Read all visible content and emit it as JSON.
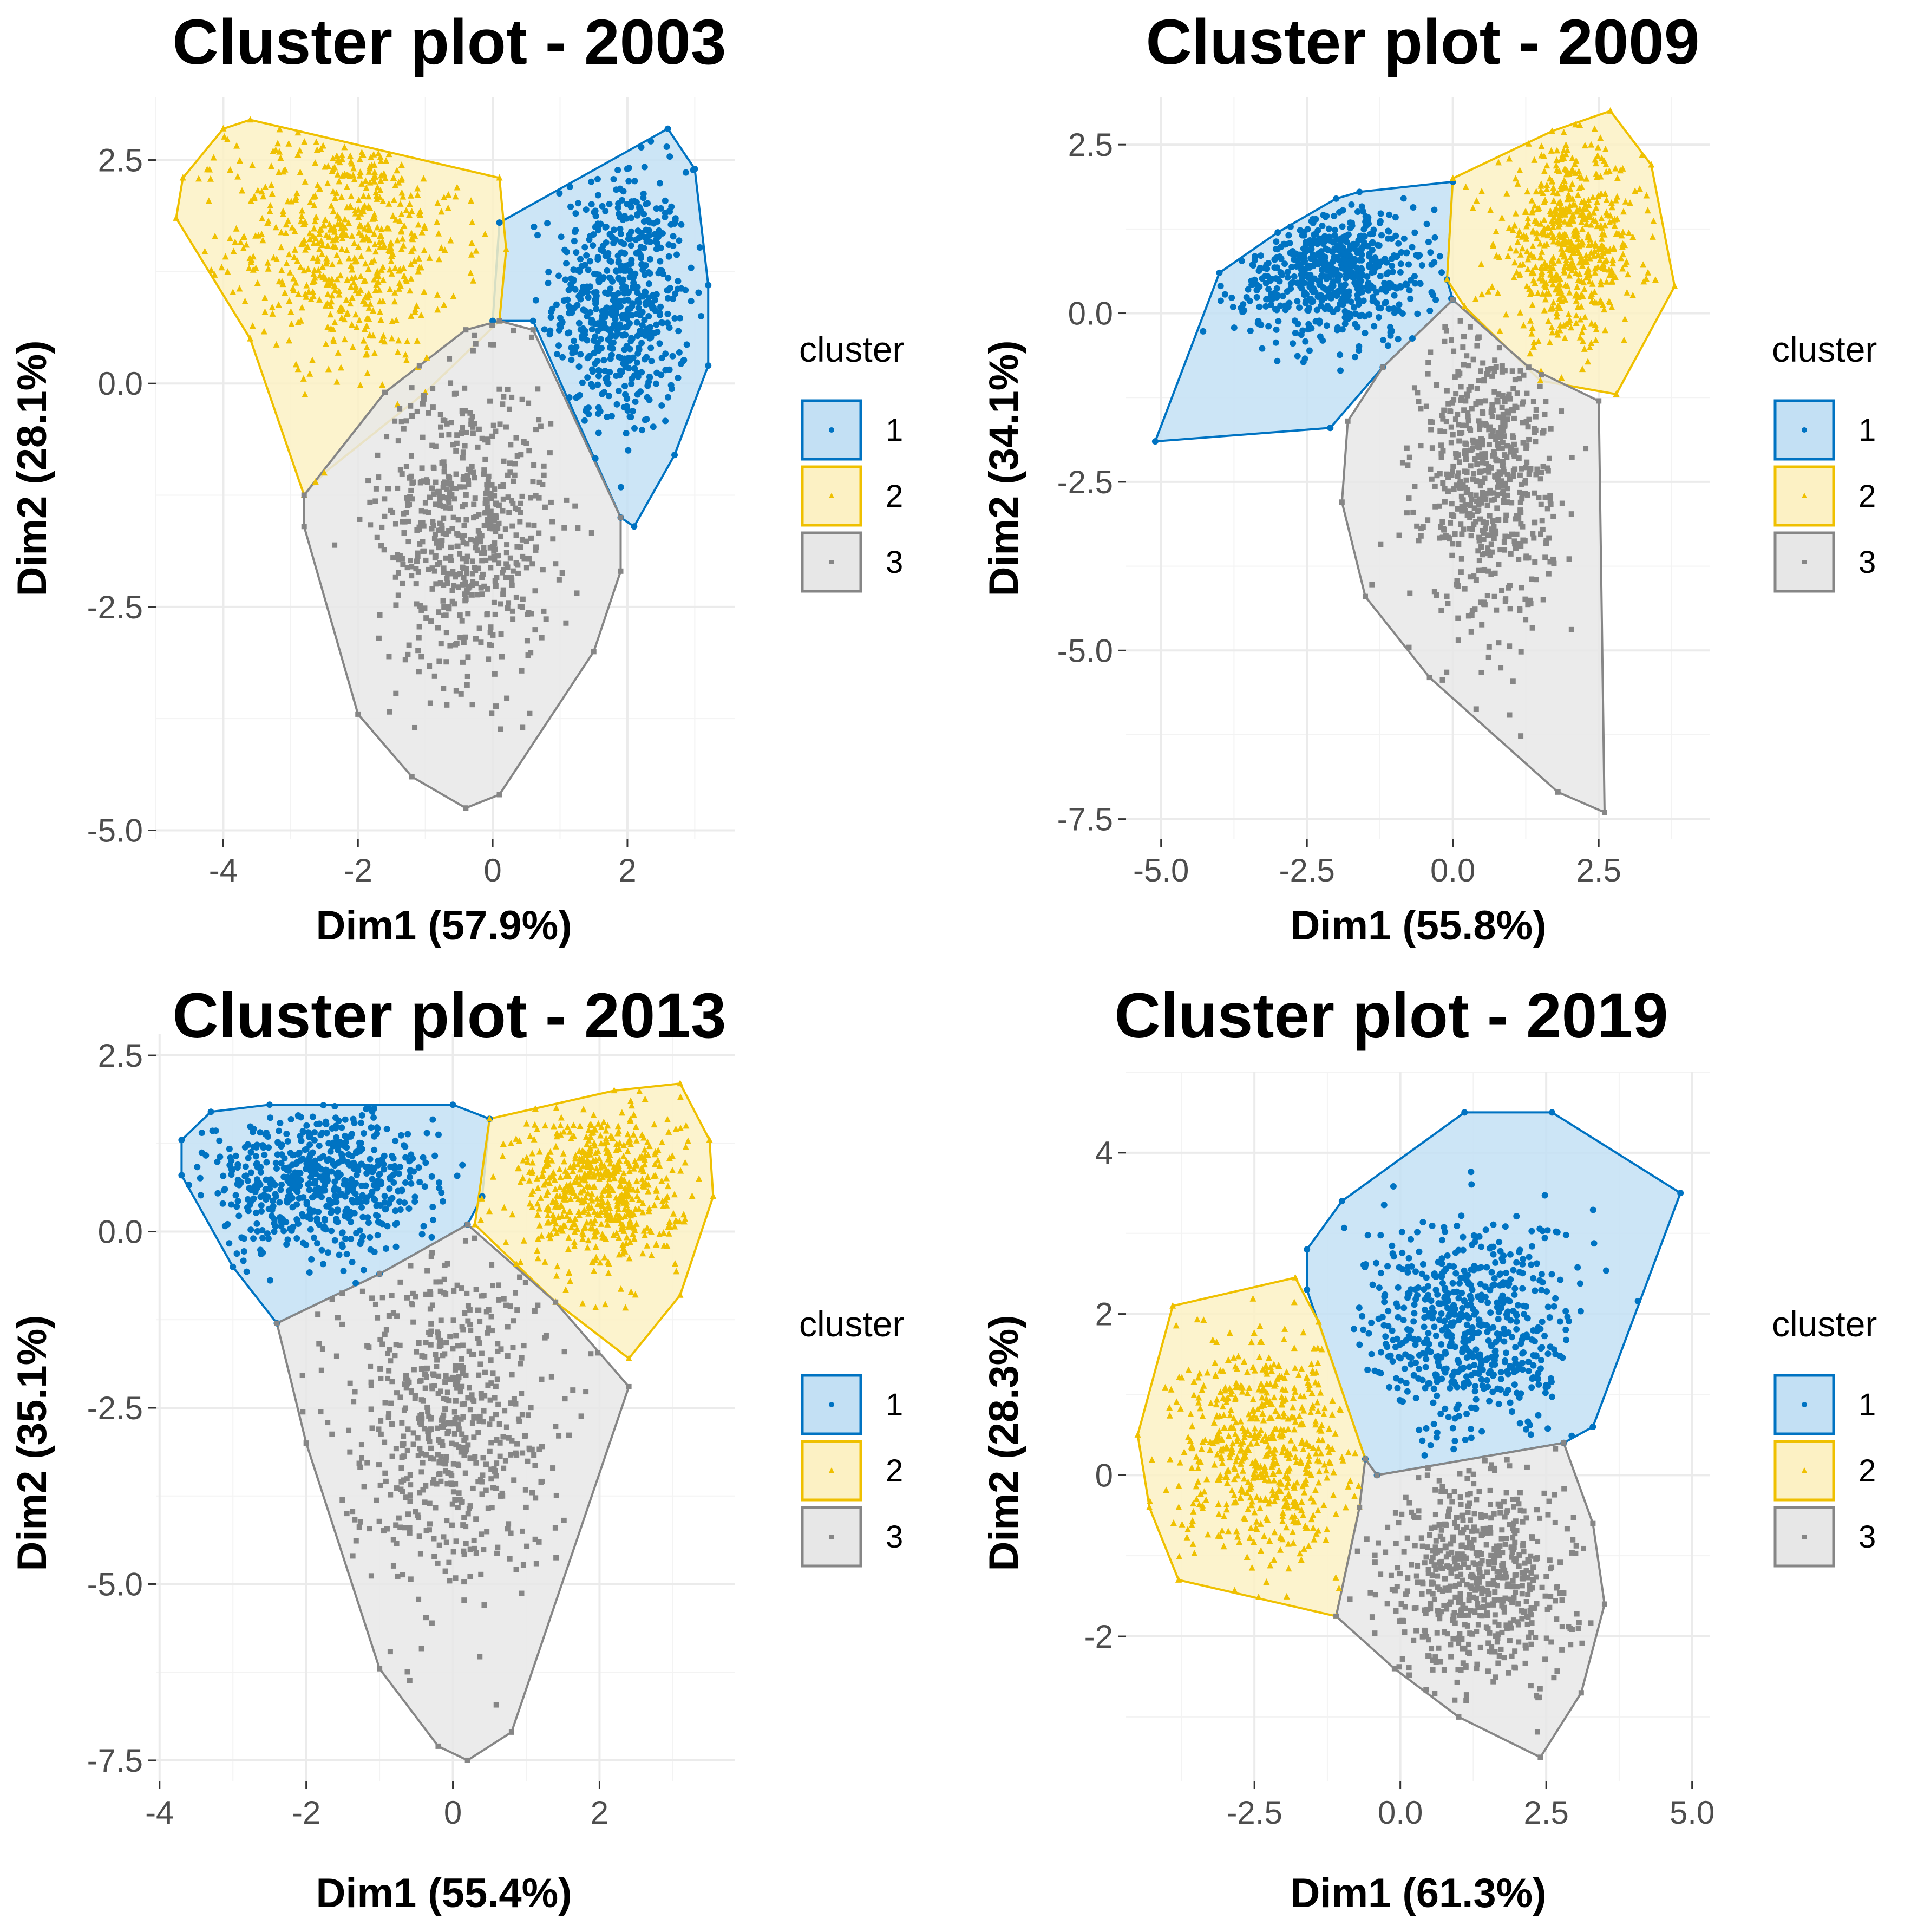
{
  "chart_data": [
    {
      "type": "scatter",
      "title": "Cluster plot - 2003",
      "xlabel": "Dim1 (57.9%)",
      "ylabel": "Dim2 (28.1%)",
      "xlim": [
        -5.0,
        3.6
      ],
      "ylim": [
        -5.1,
        3.2
      ],
      "xticks": [
        -4,
        -2,
        0,
        2
      ],
      "yticks": [
        -5.0,
        -2.5,
        0.0,
        2.5
      ],
      "xtick_labels": [
        "-4",
        "-2",
        "0",
        "2"
      ],
      "ytick_labels": [
        "-5.0",
        "-2.5",
        "0.0",
        "2.5"
      ],
      "legend_title": "cluster",
      "legend_position": "right",
      "series": [
        {
          "name": "1",
          "color": "#0073C2",
          "fill": "#C3E0F4",
          "marker": "circle",
          "hull": [
            [
              0.1,
              1.8
            ],
            [
              2.6,
              2.85
            ],
            [
              3.0,
              2.4
            ],
            [
              3.2,
              1.1
            ],
            [
              3.2,
              0.2
            ],
            [
              2.7,
              -0.8
            ],
            [
              2.1,
              -1.6
            ],
            [
              1.9,
              -1.5
            ],
            [
              0.6,
              0.7
            ],
            [
              0.0,
              0.7
            ]
          ],
          "center": [
            1.9,
            0.9
          ],
          "spread": [
            0.5,
            0.75
          ],
          "n": 600
        },
        {
          "name": "2",
          "color": "#EFC000",
          "fill": "#FCF1C4",
          "marker": "triangle",
          "hull": [
            [
              -4.7,
              1.85
            ],
            [
              -4.6,
              2.3
            ],
            [
              -4.0,
              2.85
            ],
            [
              -3.6,
              2.95
            ],
            [
              0.1,
              2.3
            ],
            [
              0.2,
              1.5
            ],
            [
              0.1,
              0.7
            ],
            [
              -1.0,
              -0.1
            ],
            [
              -2.5,
              -1.0
            ],
            [
              -2.8,
              -1.25
            ],
            [
              -3.6,
              0.5
            ]
          ],
          "center": [
            -2.2,
            1.6
          ],
          "spread": [
            0.85,
            0.7
          ],
          "n": 600
        },
        {
          "name": "3",
          "color": "#868686",
          "fill": "#E7E7E7",
          "marker": "square",
          "hull": [
            [
              -2.8,
              -1.25
            ],
            [
              -1.6,
              -0.1
            ],
            [
              -0.4,
              0.6
            ],
            [
              0.1,
              0.7
            ],
            [
              0.6,
              0.6
            ],
            [
              1.9,
              -1.5
            ],
            [
              1.9,
              -2.1
            ],
            [
              1.5,
              -3.0
            ],
            [
              0.1,
              -4.6
            ],
            [
              -0.4,
              -4.75
            ],
            [
              -1.2,
              -4.4
            ],
            [
              -2.0,
              -3.7
            ],
            [
              -2.8,
              -1.6
            ]
          ],
          "center": [
            -0.4,
            -1.6
          ],
          "spread": [
            0.65,
            0.85
          ],
          "n": 600
        }
      ]
    },
    {
      "type": "scatter",
      "title": "Cluster plot - 2009",
      "xlabel": "Dim1 (55.8%)",
      "ylabel": "Dim2 (34.1%)",
      "xlim": [
        -5.6,
        4.4
      ],
      "ylim": [
        -7.8,
        3.2
      ],
      "xticks": [
        -5.0,
        -2.5,
        0.0,
        2.5
      ],
      "yticks": [
        -7.5,
        -5.0,
        -2.5,
        0.0,
        2.5
      ],
      "xtick_labels": [
        "-5.0",
        "-2.5",
        "0.0",
        "2.5"
      ],
      "ytick_labels": [
        "-7.5",
        "-5.0",
        "-2.5",
        "0.0",
        "2.5"
      ],
      "legend_title": "cluster",
      "legend_position": "right",
      "series": [
        {
          "name": "1",
          "color": "#0073C2",
          "fill": "#C3E0F4",
          "marker": "circle",
          "hull": [
            [
              -5.1,
              -1.9
            ],
            [
              -4.0,
              0.6
            ],
            [
              -3.0,
              1.2
            ],
            [
              -2.0,
              1.7
            ],
            [
              -1.6,
              1.8
            ],
            [
              0.0,
              1.95
            ],
            [
              -0.1,
              0.5
            ],
            [
              0.0,
              0.2
            ],
            [
              -1.2,
              -0.8
            ],
            [
              -2.1,
              -1.7
            ]
          ],
          "center": [
            -2.0,
            0.6
          ],
          "spread": [
            0.85,
            0.5
          ],
          "n": 600
        },
        {
          "name": "2",
          "color": "#EFC000",
          "fill": "#FCF1C4",
          "marker": "triangle",
          "hull": [
            [
              0.0,
              2.0
            ],
            [
              1.7,
              2.7
            ],
            [
              2.7,
              3.0
            ],
            [
              3.4,
              2.2
            ],
            [
              3.8,
              0.4
            ],
            [
              2.8,
              -1.2
            ],
            [
              1.5,
              -1.0
            ],
            [
              0.2,
              0.1
            ],
            [
              -0.1,
              0.5
            ]
          ],
          "center": [
            2.0,
            1.0
          ],
          "spread": [
            0.6,
            0.7
          ],
          "n": 600
        },
        {
          "name": "3",
          "color": "#868686",
          "fill": "#E7E7E7",
          "marker": "square",
          "hull": [
            [
              0.0,
              0.2
            ],
            [
              1.3,
              -0.8
            ],
            [
              2.5,
              -1.3
            ],
            [
              2.6,
              -7.4
            ],
            [
              1.8,
              -7.1
            ],
            [
              -0.4,
              -5.4
            ],
            [
              -1.5,
              -4.2
            ],
            [
              -1.9,
              -2.8
            ],
            [
              -1.8,
              -1.6
            ],
            [
              -1.2,
              -0.8
            ]
          ],
          "center": [
            0.6,
            -2.4
          ],
          "spread": [
            0.55,
            1.1
          ],
          "n": 600
        }
      ]
    },
    {
      "type": "scatter",
      "title": "Cluster plot - 2013",
      "xlabel": "Dim1 (55.4%)",
      "ylabel": "Dim2 (35.1%)",
      "xlim": [
        -4.05,
        3.85
      ],
      "ylim": [
        -7.8,
        2.8
      ],
      "xticks": [
        -4,
        -2,
        0,
        2
      ],
      "yticks": [
        -7.5,
        -5.0,
        -2.5,
        0.0,
        2.5
      ],
      "xtick_labels": [
        "-4",
        "-2",
        "0",
        "2"
      ],
      "ytick_labels": [
        "-7.5",
        "-5.0",
        "-2.5",
        "0.0",
        "2.5"
      ],
      "legend_title": "cluster",
      "legend_position": "right",
      "series": [
        {
          "name": "1",
          "color": "#0073C2",
          "fill": "#C3E0F4",
          "marker": "circle",
          "hull": [
            [
              -3.7,
              1.3
            ],
            [
              -3.3,
              1.7
            ],
            [
              -2.5,
              1.8
            ],
            [
              0.0,
              1.8
            ],
            [
              0.5,
              1.6
            ],
            [
              0.4,
              0.5
            ],
            [
              0.2,
              0.1
            ],
            [
              -1.0,
              -0.6
            ],
            [
              -2.4,
              -1.3
            ],
            [
              -3.0,
              -0.5
            ],
            [
              -3.7,
              0.8
            ]
          ],
          "center": [
            -1.8,
            0.7
          ],
          "spread": [
            0.8,
            0.5
          ],
          "n": 600
        },
        {
          "name": "2",
          "color": "#EFC000",
          "fill": "#FCF1C4",
          "marker": "triangle",
          "hull": [
            [
              0.5,
              1.6
            ],
            [
              2.2,
              2.0
            ],
            [
              3.1,
              2.1
            ],
            [
              3.5,
              1.3
            ],
            [
              3.55,
              0.5
            ],
            [
              3.1,
              -0.9
            ],
            [
              2.4,
              -1.8
            ],
            [
              1.4,
              -1.0
            ],
            [
              0.3,
              0.1
            ]
          ],
          "center": [
            2.0,
            0.6
          ],
          "spread": [
            0.55,
            0.6
          ],
          "n": 600
        },
        {
          "name": "3",
          "color": "#868686",
          "fill": "#E7E7E7",
          "marker": "square",
          "hull": [
            [
              -2.4,
              -1.3
            ],
            [
              -1.0,
              -0.6
            ],
            [
              0.2,
              0.1
            ],
            [
              1.4,
              -1.0
            ],
            [
              2.4,
              -2.2
            ],
            [
              0.8,
              -7.1
            ],
            [
              0.2,
              -7.5
            ],
            [
              -0.2,
              -7.3
            ],
            [
              -1.0,
              -6.2
            ],
            [
              -2.0,
              -3.0
            ]
          ],
          "center": [
            -0.1,
            -2.6
          ],
          "spread": [
            0.7,
            1.2
          ],
          "n": 600
        }
      ]
    },
    {
      "type": "scatter",
      "title": "Cluster plot - 2019",
      "xlabel": "Dim1 (61.3%)",
      "ylabel": "Dim2 (28.3%)",
      "xlim": [
        -4.7,
        5.3
      ],
      "ylim": [
        -3.8,
        5.0
      ],
      "xticks": [
        -2.5,
        0.0,
        2.5,
        5.0
      ],
      "yticks": [
        -2,
        0,
        2,
        4
      ],
      "xtick_labels": [
        "-2.5",
        "0.0",
        "2.5",
        "5.0"
      ],
      "ytick_labels": [
        "-2",
        "0",
        "2",
        "4"
      ],
      "legend_title": "cluster",
      "legend_position": "right",
      "series": [
        {
          "name": "1",
          "color": "#0073C2",
          "fill": "#C3E0F4",
          "marker": "circle",
          "hull": [
            [
              -1.6,
              2.8
            ],
            [
              -1.0,
              3.4
            ],
            [
              1.1,
              4.5
            ],
            [
              2.6,
              4.5
            ],
            [
              4.8,
              3.5
            ],
            [
              3.3,
              0.6
            ],
            [
              2.8,
              0.4
            ],
            [
              -0.4,
              0.0
            ],
            [
              -0.6,
              0.2
            ],
            [
              -1.6,
              2.3
            ]
          ],
          "center": [
            1.2,
            1.8
          ],
          "spread": [
            0.9,
            0.7
          ],
          "n": 600
        },
        {
          "name": "2",
          "color": "#EFC000",
          "fill": "#FCF1C4",
          "marker": "triangle",
          "hull": [
            [
              -3.9,
              2.1
            ],
            [
              -1.8,
              2.45
            ],
            [
              -1.4,
              1.9
            ],
            [
              -0.6,
              0.2
            ],
            [
              -0.7,
              -0.4
            ],
            [
              -1.1,
              -1.75
            ],
            [
              -3.8,
              -1.3
            ],
            [
              -4.3,
              -0.4
            ],
            [
              -4.5,
              0.5
            ]
          ],
          "center": [
            -2.3,
            0.3
          ],
          "spread": [
            0.75,
            0.7
          ],
          "n": 600
        },
        {
          "name": "3",
          "color": "#868686",
          "fill": "#E7E7E7",
          "marker": "square",
          "hull": [
            [
              -0.6,
              0.2
            ],
            [
              -0.4,
              0.0
            ],
            [
              2.8,
              0.4
            ],
            [
              3.3,
              -0.6
            ],
            [
              3.5,
              -1.6
            ],
            [
              3.1,
              -2.7
            ],
            [
              2.4,
              -3.5
            ],
            [
              1.0,
              -3.0
            ],
            [
              -0.1,
              -2.4
            ],
            [
              -1.1,
              -1.75
            ],
            [
              -0.7,
              -0.4
            ]
          ],
          "center": [
            1.4,
            -1.2
          ],
          "spread": [
            0.8,
            0.7
          ],
          "n": 600
        }
      ]
    }
  ]
}
